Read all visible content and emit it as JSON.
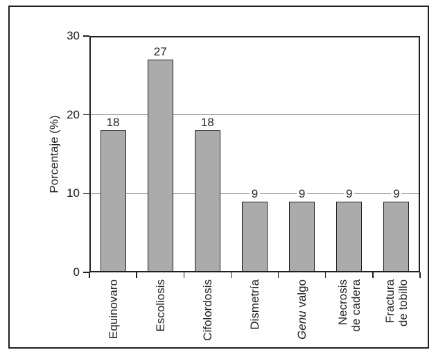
{
  "chart_data": {
    "type": "bar",
    "title": "",
    "xlabel": "",
    "ylabel": "Porcentaje (%)",
    "categories": [
      "Equinovaro",
      "Escoliosis",
      "Cifolordosis",
      "Dismetría",
      "Genu valgo",
      "Necrosis de cadera",
      "Fractura de tobillo"
    ],
    "values": [
      18,
      27,
      18,
      9,
      9,
      9,
      9
    ],
    "value_labels": [
      "18",
      "27",
      "18",
      "9",
      "9",
      "9",
      "9"
    ],
    "ylim": [
      0,
      30
    ],
    "yticks": [
      0,
      10,
      20,
      30
    ],
    "ytick_labels": [
      "0",
      "10",
      "20",
      "30"
    ],
    "grid_values": [
      10,
      20
    ],
    "legend": "none",
    "bar_color": "#ababab",
    "bar_border_color": "#1f1f1f",
    "gridline_color": "#8f8f8f",
    "category_labels": [
      {
        "lines": [
          [
            {
              "t": "Equinovaro"
            }
          ]
        ]
      },
      {
        "lines": [
          [
            {
              "t": "Escoliosis"
            }
          ]
        ]
      },
      {
        "lines": [
          [
            {
              "t": "Cifolordosis"
            }
          ]
        ]
      },
      {
        "lines": [
          [
            {
              "t": "Dismetría"
            }
          ]
        ]
      },
      {
        "lines": [
          [
            {
              "t": "Genu",
              "i": true
            },
            {
              "t": " valgo"
            }
          ]
        ]
      },
      {
        "lines": [
          [
            {
              "t": "Necrosis"
            }
          ],
          [
            {
              "t": "de cadera"
            }
          ]
        ]
      },
      {
        "lines": [
          [
            {
              "t": "Fractura"
            }
          ],
          [
            {
              "t": "de tobillo"
            }
          ]
        ]
      }
    ]
  },
  "colors": {
    "frame_border": "#1f1f1f",
    "axis": "#1f1f1f",
    "text": "#222222",
    "background": "#ffffff"
  }
}
